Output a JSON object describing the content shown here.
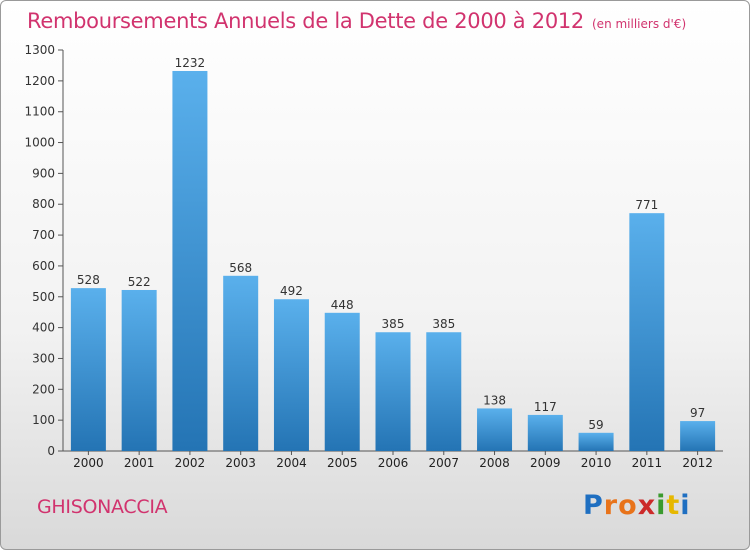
{
  "title": "Remboursements Annuels de la Dette de 2000 à 2012",
  "unit": "(en milliers d'€)",
  "commune": "GHISONACCIA",
  "logo": {
    "letters": [
      "P",
      "r",
      "o",
      "x",
      "i",
      "t",
      "i"
    ]
  },
  "colors": {
    "title": "#d1336e",
    "bar_top": "#5ab0ec",
    "bar_bottom": "#2474b4",
    "logo": [
      "#1f6fc1",
      "#e8731a",
      "#e8731a",
      "#cc2a2a",
      "#3a9a2e",
      "#e6b800",
      "#1f6fc1"
    ]
  },
  "chart_data": {
    "type": "bar",
    "title": "Remboursements Annuels de la Dette de 2000 à 2012",
    "xlabel": "",
    "ylabel": "(en milliers d'€)",
    "categories": [
      "2000",
      "2001",
      "2002",
      "2003",
      "2004",
      "2005",
      "2006",
      "2007",
      "2008",
      "2009",
      "2010",
      "2011",
      "2012"
    ],
    "values": [
      528,
      522,
      1232,
      568,
      492,
      448,
      385,
      385,
      138,
      117,
      59,
      771,
      97
    ],
    "ylim": [
      0,
      1300
    ],
    "yticks": [
      0,
      100,
      200,
      300,
      400,
      500,
      600,
      700,
      800,
      900,
      1000,
      1100,
      1200,
      1300
    ],
    "grid": false
  }
}
